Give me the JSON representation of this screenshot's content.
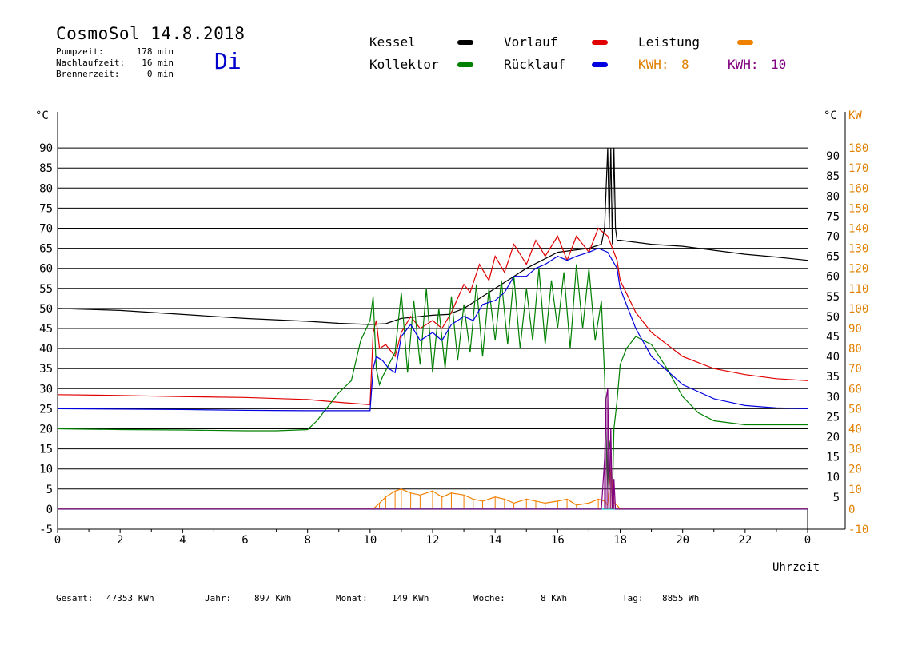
{
  "header": {
    "title": "CosmoSol 14.8.2018",
    "day": "Di",
    "stats": [
      {
        "label": "Pumpzeit:",
        "value": "178 min"
      },
      {
        "label": "Nachlaufzeit:",
        "value": "16 min"
      },
      {
        "label": "Brennerzeit:",
        "value": "0 min"
      }
    ]
  },
  "legend": [
    {
      "label": "Kessel",
      "color": "#000000"
    },
    {
      "label": "Vorlauf",
      "color": "#e00000"
    },
    {
      "label": "Leistung",
      "color": "#f08000"
    },
    {
      "label": "Kollektor",
      "color": "#008000"
    },
    {
      "label": "Rücklauf",
      "color": "#0000e0"
    }
  ],
  "kwh": [
    {
      "label": "KWH:",
      "value": "8",
      "color": "#e08000"
    },
    {
      "label": "KWH:",
      "value": "10",
      "color": "#800080"
    }
  ],
  "footer": [
    {
      "label": "Gesamt:",
      "value": "47353 KWh"
    },
    {
      "label": "Jahr:",
      "value": "897 KWh"
    },
    {
      "label": "Monat:",
      "value": "149 KWh"
    },
    {
      "label": "Woche:",
      "value": "8 KWh"
    },
    {
      "label": "Tag:",
      "value": "8855 Wh"
    }
  ],
  "chart_data": {
    "type": "line",
    "xlabel": "Uhrzeit",
    "ylabel": "°C",
    "y2label": "KW",
    "xlim": [
      0,
      24
    ],
    "ylim": [
      -5,
      95
    ],
    "y2lim": [
      -10,
      190
    ],
    "x_ticks": [
      "0",
      "2",
      "4",
      "6",
      "8",
      "10",
      "12",
      "14",
      "16",
      "18",
      "20",
      "22",
      "0"
    ],
    "y_ticks_left": [
      "-5",
      "0",
      "5",
      "10",
      "15",
      "20",
      "25",
      "30",
      "35",
      "40",
      "45",
      "50",
      "55",
      "60",
      "65",
      "70",
      "75",
      "80",
      "85",
      "90"
    ],
    "y_ticks_right_temp": [
      "5",
      "10",
      "15",
      "20",
      "25",
      "30",
      "35",
      "40",
      "45",
      "50",
      "55",
      "60",
      "65",
      "70",
      "75",
      "80",
      "85",
      "90"
    ],
    "y_ticks_right_kw": [
      "-10",
      "0",
      "10",
      "20",
      "30",
      "40",
      "50",
      "60",
      "70",
      "80",
      "90",
      "100",
      "110",
      "120",
      "130",
      "140",
      "150",
      "160",
      "170",
      "180"
    ],
    "series": [
      {
        "name": "Kessel",
        "color": "#000000",
        "x": [
          0,
          2,
          4,
          6,
          8,
          9,
          10,
          10.5,
          11,
          12,
          12.5,
          13,
          14,
          15,
          16,
          17,
          17.4,
          17.5,
          17.6,
          17.65,
          17.7,
          17.75,
          17.8,
          17.85,
          17.9,
          18,
          19,
          20,
          21,
          22,
          23,
          24
        ],
        "values": [
          50,
          49.5,
          48.5,
          47.5,
          46.8,
          46.3,
          46,
          46.2,
          47.5,
          48.3,
          48.5,
          50,
          55,
          60,
          64,
          65,
          66,
          70,
          90,
          70,
          90,
          66,
          90,
          70,
          67,
          67,
          66,
          65.5,
          64.5,
          63.5,
          62.8,
          62
        ]
      },
      {
        "name": "Vorlauf",
        "color": "#e00000",
        "x": [
          0,
          2,
          4,
          6,
          8,
          9,
          10,
          10.1,
          10.2,
          10.3,
          10.5,
          10.8,
          11,
          11.3,
          11.6,
          12,
          12.3,
          12.6,
          13,
          13.2,
          13.5,
          13.8,
          14,
          14.3,
          14.6,
          15,
          15.3,
          15.6,
          16,
          16.3,
          16.6,
          17,
          17.3,
          17.6,
          17.9,
          18,
          18.5,
          19,
          20,
          21,
          22,
          23,
          24
        ],
        "values": [
          28.5,
          28.3,
          28,
          27.8,
          27.3,
          26.6,
          26,
          44,
          47,
          40,
          41,
          38,
          44,
          48,
          45,
          47,
          45,
          49,
          56,
          54,
          61,
          57,
          63,
          59,
          66,
          61,
          67,
          63,
          68,
          62,
          68,
          64,
          70,
          68,
          62,
          57,
          49,
          44,
          38,
          35,
          33.5,
          32.5,
          32
        ]
      },
      {
        "name": "Kollektor",
        "color": "#008000",
        "x": [
          0,
          2,
          4,
          6,
          7,
          8,
          8.3,
          8.6,
          9,
          9.4,
          9.7,
          10,
          10.1,
          10.2,
          10.3,
          10.4,
          10.6,
          10.8,
          11,
          11.2,
          11.4,
          11.6,
          11.8,
          12,
          12.2,
          12.4,
          12.6,
          12.8,
          13,
          13.2,
          13.4,
          13.6,
          13.8,
          14,
          14.2,
          14.4,
          14.6,
          14.8,
          15,
          15.2,
          15.4,
          15.6,
          15.8,
          16,
          16.2,
          16.4,
          16.6,
          16.8,
          17,
          17.2,
          17.4,
          17.5,
          17.6,
          17.65,
          17.7,
          17.75,
          17.8,
          17.9,
          18,
          18.2,
          18.5,
          19,
          19.5,
          20,
          20.5,
          21,
          22,
          23,
          24
        ],
        "values": [
          20,
          19.8,
          19.7,
          19.5,
          19.5,
          19.8,
          22,
          25,
          29,
          32,
          42,
          47,
          53,
          35,
          31,
          33,
          36,
          39,
          54,
          34,
          52,
          36,
          55,
          34,
          50,
          35,
          53,
          37,
          51,
          39,
          56,
          38,
          55,
          42,
          57,
          41,
          58,
          40,
          55,
          42,
          60,
          41,
          57,
          45,
          59,
          40,
          61,
          45,
          60,
          42,
          52,
          33,
          5,
          17,
          14,
          2,
          20,
          27,
          36,
          40,
          43,
          41,
          35,
          28,
          24,
          22,
          21,
          21,
          21
        ]
      },
      {
        "name": "Rücklauf",
        "color": "#0000e0",
        "x": [
          0,
          2,
          4,
          6,
          8,
          9,
          10,
          10.1,
          10.2,
          10.4,
          10.6,
          10.8,
          11,
          11.3,
          11.6,
          12,
          12.3,
          12.6,
          13,
          13.3,
          13.6,
          14,
          14.3,
          14.6,
          15,
          15.3,
          15.6,
          16,
          16.3,
          16.6,
          17,
          17.3,
          17.6,
          17.9,
          18,
          18.5,
          19,
          20,
          21,
          22,
          23,
          24
        ],
        "values": [
          25,
          24.9,
          24.8,
          24.6,
          24.5,
          24.5,
          24.5,
          35,
          38,
          37,
          35,
          34,
          43,
          46,
          42,
          44,
          42,
          46,
          48,
          47,
          51,
          52,
          54,
          58,
          58,
          60,
          61,
          63,
          62,
          63,
          64,
          65,
          64,
          60,
          55,
          45,
          38,
          31,
          27.5,
          25.8,
          25.2,
          25
        ]
      },
      {
        "name": "Leistung",
        "color": "#f08000",
        "axis": "right",
        "x": [
          0,
          10,
          10.1,
          10.3,
          10.5,
          10.8,
          11,
          11.3,
          11.6,
          12,
          12.3,
          12.6,
          13,
          13.3,
          13.6,
          14,
          14.3,
          14.6,
          15,
          15.3,
          15.6,
          16,
          16.3,
          16.6,
          17,
          17.3,
          17.5,
          17.6,
          17.7,
          17.8,
          17.9,
          18,
          24
        ],
        "values": [
          0,
          0,
          0,
          3,
          6,
          9,
          10,
          8,
          7,
          9,
          6,
          8,
          7,
          5,
          4,
          6,
          5,
          3,
          5,
          4,
          3,
          4,
          5,
          2,
          3,
          5,
          4,
          2,
          20,
          3,
          2,
          0,
          0
        ]
      },
      {
        "name": "Leistung (KWH 10)",
        "color": "#800080",
        "axis": "right",
        "x": [
          0,
          10,
          17.4,
          17.5,
          17.55,
          17.6,
          17.65,
          17.7,
          17.75,
          17.8,
          17.85,
          17.9,
          24
        ],
        "values": [
          0,
          0,
          0,
          25,
          55,
          60,
          10,
          40,
          0,
          15,
          0,
          0,
          0
        ]
      }
    ]
  }
}
